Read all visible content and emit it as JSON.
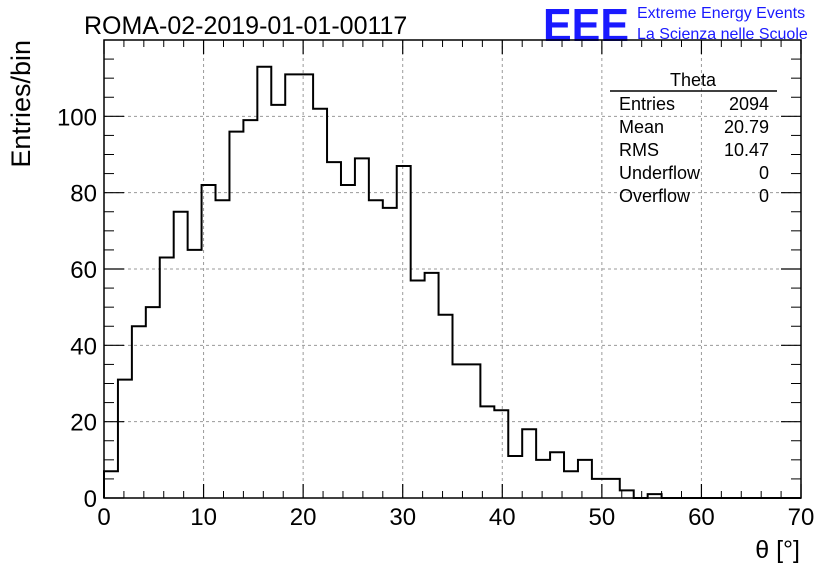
{
  "brand": {
    "logo_text": "EEE",
    "line1": "Extreme Energy Events",
    "line2": "La Scienza nelle Scuole",
    "color": "#1a1aff"
  },
  "chart_data": {
    "type": "histogram",
    "title": "ROMA-02-2019-01-01-00117",
    "xlabel": "θ [°]",
    "ylabel": "Entries/bin",
    "xlim": [
      0,
      70
    ],
    "ylim": [
      0,
      120
    ],
    "bin_width": 1.4,
    "x_ticks": [
      "0",
      "10",
      "20",
      "30",
      "40",
      "50",
      "60",
      "70"
    ],
    "y_ticks": [
      "0",
      "20",
      "40",
      "60",
      "80",
      "100"
    ],
    "grid": true,
    "values": [
      7,
      31,
      45,
      50,
      63,
      75,
      65,
      82,
      78,
      96,
      99,
      113,
      103,
      111,
      111,
      102,
      88,
      82,
      89,
      78,
      76,
      87,
      57,
      59,
      48,
      35,
      35,
      24,
      23,
      11,
      18,
      10,
      12,
      7,
      10,
      5,
      5,
      2,
      0,
      1,
      0,
      0,
      0,
      0,
      0,
      0,
      0,
      0,
      0,
      0
    ],
    "stats": {
      "name": "Theta",
      "rows": [
        {
          "label": "Entries",
          "value": "2094"
        },
        {
          "label": "Mean",
          "value": "20.79"
        },
        {
          "label": "RMS",
          "value": "10.47"
        },
        {
          "label": "Underflow",
          "value": "0"
        },
        {
          "label": "Overflow",
          "value": "0"
        }
      ]
    }
  }
}
